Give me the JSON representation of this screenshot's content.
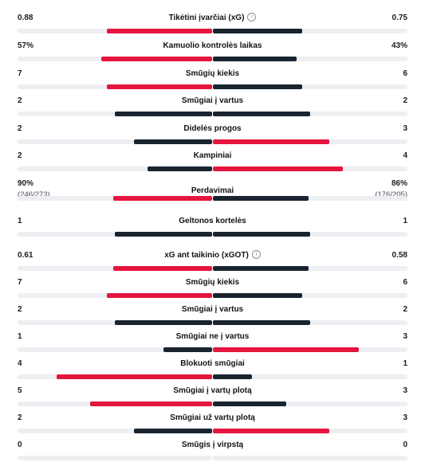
{
  "colors": {
    "leading": "#e5153f",
    "trailing": "#192430",
    "track": "#eeeff2"
  },
  "general_stats": [
    {
      "label": "Tikėtini įvarčiai (xG)",
      "info_icon": "info-icon",
      "home": "0.88",
      "away": "0.75",
      "home_sub": "",
      "away_sub": "",
      "home_fraction": 0.54,
      "away_fraction": 0.46,
      "leader": "home"
    },
    {
      "label": "Kamuolio kontrolės laikas",
      "home": "57%",
      "away": "43%",
      "home_sub": "",
      "away_sub": "",
      "home_fraction": 0.57,
      "away_fraction": 0.43,
      "leader": "home"
    },
    {
      "label": "Smūgių kiekis",
      "home": "7",
      "away": "6",
      "home_sub": "",
      "away_sub": "",
      "home_fraction": 0.54,
      "away_fraction": 0.46,
      "leader": "home"
    },
    {
      "label": "Smūgiai į vartus",
      "home": "2",
      "away": "2",
      "home_sub": "",
      "away_sub": "",
      "home_fraction": 0.5,
      "away_fraction": 0.5,
      "leader": "none"
    },
    {
      "label": "Didelės progos",
      "home": "2",
      "away": "3",
      "home_sub": "",
      "away_sub": "",
      "home_fraction": 0.4,
      "away_fraction": 0.6,
      "leader": "away"
    },
    {
      "label": "Kampiniai",
      "home": "2",
      "away": "4",
      "home_sub": "",
      "away_sub": "",
      "home_fraction": 0.33,
      "away_fraction": 0.67,
      "leader": "away"
    },
    {
      "label": "Perdavimai",
      "home": "90%",
      "away": "86%",
      "home_sub": "(246/273)",
      "away_sub": "(176/205)",
      "home_fraction": 0.51,
      "away_fraction": 0.49,
      "leader": "home"
    },
    {
      "label": "Geltonos kortelės",
      "home": "1",
      "away": "1",
      "home_sub": "",
      "away_sub": "",
      "home_fraction": 0.5,
      "away_fraction": 0.5,
      "leader": "none"
    }
  ],
  "shot_stats": [
    {
      "label": "xG ant taikinio (xGOT)",
      "info_icon": "info-icon",
      "home": "0.61",
      "away": "0.58",
      "home_fraction": 0.51,
      "away_fraction": 0.49,
      "leader": "home"
    },
    {
      "label": "Smūgių kiekis",
      "home": "7",
      "away": "6",
      "home_fraction": 0.54,
      "away_fraction": 0.46,
      "leader": "home"
    },
    {
      "label": "Smūgiai į vartus",
      "home": "2",
      "away": "2",
      "home_fraction": 0.5,
      "away_fraction": 0.5,
      "leader": "none"
    },
    {
      "label": "Smūgiai ne į vartus",
      "home": "1",
      "away": "3",
      "home_fraction": 0.25,
      "away_fraction": 0.75,
      "leader": "away"
    },
    {
      "label": "Blokuoti smūgiai",
      "home": "4",
      "away": "1",
      "home_fraction": 0.8,
      "away_fraction": 0.2,
      "leader": "home"
    },
    {
      "label": "Smūgiai į vartų plotą",
      "home": "5",
      "away": "3",
      "home_fraction": 0.625,
      "away_fraction": 0.375,
      "leader": "home"
    },
    {
      "label": "Smūgiai už vartų plotą",
      "home": "2",
      "away": "3",
      "home_fraction": 0.4,
      "away_fraction": 0.6,
      "leader": "away"
    },
    {
      "label": "Smūgis į virpstą",
      "home": "0",
      "away": "0",
      "home_fraction": 0,
      "away_fraction": 0,
      "leader": "none"
    }
  ]
}
